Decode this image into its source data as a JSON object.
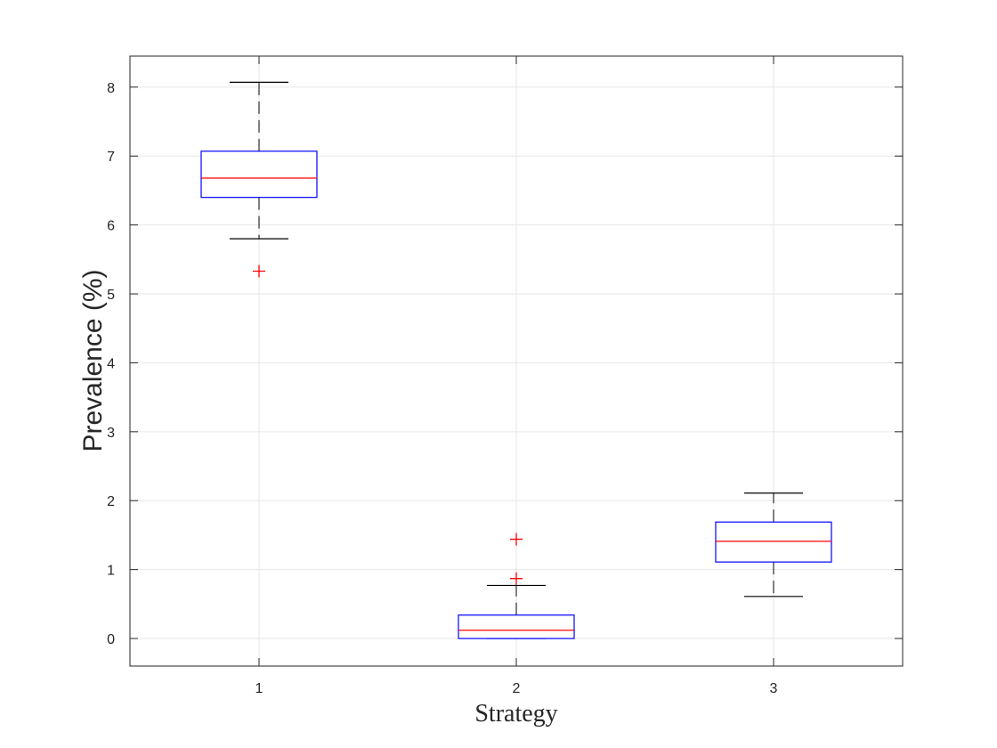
{
  "chart_data": {
    "type": "box",
    "xlabel": "Strategy",
    "ylabel": "Prevalence (%)",
    "ylim": [
      -0.4,
      8.45
    ],
    "yticks": [
      0,
      1,
      2,
      3,
      4,
      5,
      6,
      7,
      8
    ],
    "categories": [
      "1",
      "2",
      "3"
    ],
    "grid": true,
    "boxes": [
      {
        "category": "1",
        "whisker_low": 5.8,
        "q1": 6.4,
        "median": 6.68,
        "q3": 7.07,
        "whisker_high": 8.07,
        "outliers": [
          5.33
        ]
      },
      {
        "category": "2",
        "whisker_low": 0.0,
        "q1": 0.0,
        "median": 0.12,
        "q3": 0.34,
        "whisker_high": 0.77,
        "outliers": [
          0.87,
          1.44
        ]
      },
      {
        "category": "3",
        "whisker_low": 0.61,
        "q1": 1.11,
        "median": 1.41,
        "q3": 1.69,
        "whisker_high": 2.11,
        "outliers": []
      }
    ],
    "colors": {
      "box": "#0000ff",
      "median": "#ff0000",
      "whisker": "#000000",
      "outlier": "#ff0000",
      "grid": "#e6e6e6",
      "axis": "#262626"
    }
  }
}
